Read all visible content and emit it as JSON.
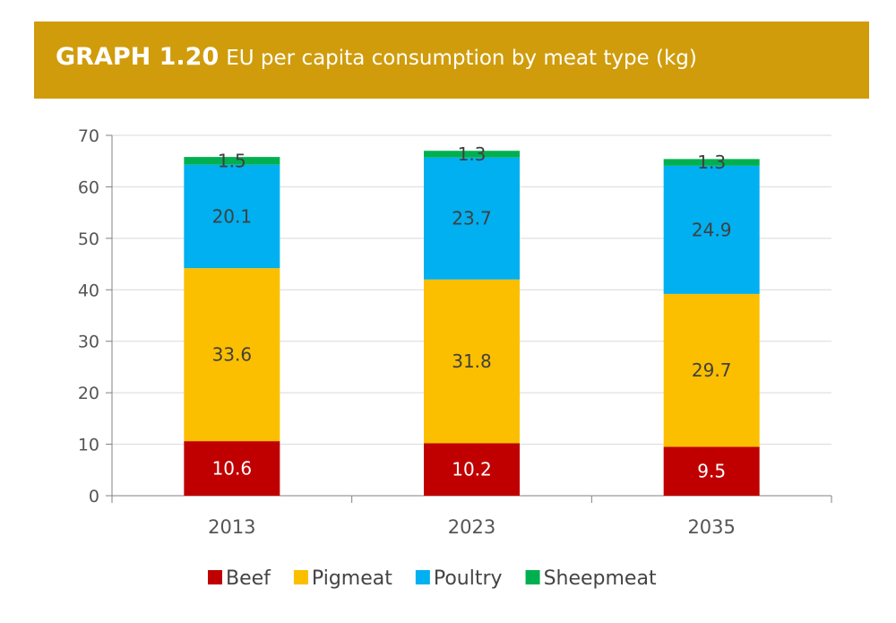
{
  "header": {
    "graph_number": "GRAPH 1.20",
    "title": "EU per capita consumption by meat type (kg)"
  },
  "chart_data": {
    "type": "bar",
    "stacked": true,
    "categories": [
      "2013",
      "2023",
      "2035"
    ],
    "series": [
      {
        "name": "Beef",
        "color": "#c00000",
        "label_color": "#ffffff",
        "values": [
          10.6,
          10.2,
          9.5
        ]
      },
      {
        "name": "Pigmeat",
        "color": "#fbbf00",
        "label_color": "#404040",
        "values": [
          33.6,
          31.8,
          29.7
        ]
      },
      {
        "name": "Poultry",
        "color": "#00b0f0",
        "label_color": "#404040",
        "values": [
          20.1,
          23.7,
          24.9
        ]
      },
      {
        "name": "Sheepmeat",
        "color": "#00b050",
        "label_color": "#404040",
        "values": [
          1.5,
          1.3,
          1.3
        ]
      }
    ],
    "ylim": [
      0,
      70
    ],
    "yticks": [
      0,
      10,
      20,
      30,
      40,
      50,
      60,
      70
    ],
    "grid": true,
    "legend": "bottom"
  }
}
